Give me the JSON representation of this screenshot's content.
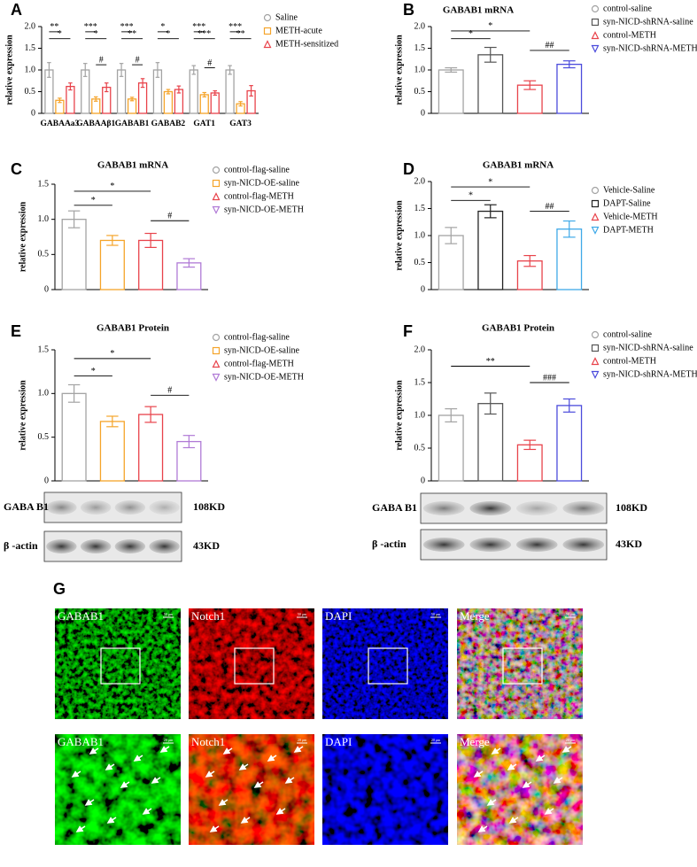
{
  "chart_data": [
    {
      "type": "bar",
      "panel_label": "A",
      "ylabel": "relative expression",
      "categories": [
        "GABAAa3",
        "GABAAβ1",
        "GABAB1",
        "GABAB2",
        "GAT1",
        "GAT3"
      ],
      "series": [
        {
          "name": "Saline",
          "color": "#a3a3a3",
          "marker": "circle",
          "values": [
            1.0,
            1.0,
            1.0,
            1.0,
            1.0,
            1.0
          ],
          "errors": [
            0.17,
            0.15,
            0.15,
            0.17,
            0.1,
            0.1
          ]
        },
        {
          "name": "METH-acute",
          "color": "#f5a42a",
          "marker": "square",
          "values": [
            0.3,
            0.33,
            0.33,
            0.5,
            0.43,
            0.22
          ],
          "errors": [
            0.05,
            0.05,
            0.04,
            0.05,
            0.05,
            0.05
          ]
        },
        {
          "name": "METH-sensitized",
          "color": "#e8434b",
          "marker": "triangle",
          "values": [
            0.62,
            0.6,
            0.7,
            0.55,
            0.47,
            0.52
          ],
          "errors": [
            0.08,
            0.1,
            0.1,
            0.08,
            0.05,
            0.12
          ]
        }
      ],
      "ylim": [
        0,
        2
      ],
      "yticks": [
        0,
        0.5,
        {
          "value": 1,
          "label": "1.0"
        },
        1.5,
        {
          "value": 2,
          "label": "2.0"
        }
      ],
      "annotations": [
        "**",
        "*",
        "***",
        "*",
        "#",
        "***",
        "**",
        "#",
        "*",
        "*",
        "***",
        "***",
        "#",
        "***",
        "**"
      ]
    },
    {
      "type": "bar",
      "panel_label": "B",
      "title": "GABAB1 mRNA",
      "ylabel": "relative expression",
      "series": [
        {
          "name": "control-saline",
          "color": "#a3a3a3",
          "marker": "circle",
          "values": [
            1.0
          ],
          "errors": [
            0.05
          ]
        },
        {
          "name": "syn-NICD-shRNA-saline",
          "color": "#555555",
          "marker": "square",
          "values": [
            1.35
          ],
          "errors": [
            0.17
          ]
        },
        {
          "name": "control-METH",
          "color": "#e8434b",
          "marker": "triangle",
          "values": [
            0.65
          ],
          "errors": [
            0.1
          ]
        },
        {
          "name": "syn-NICD-shRNA-METH",
          "color": "#4b4bdc",
          "marker": "triangle-down",
          "values": [
            1.13
          ],
          "errors": [
            0.08
          ]
        }
      ],
      "ylim": [
        0,
        2
      ],
      "yticks": [
        0,
        0.5,
        {
          "value": 1,
          "label": "1.0"
        },
        1.5,
        {
          "value": 2,
          "label": "2.0"
        }
      ],
      "annotations": [
        "*",
        "*",
        "##"
      ]
    },
    {
      "type": "bar",
      "panel_label": "C",
      "title": "GABAB1 mRNA",
      "ylabel": "relative expression",
      "series": [
        {
          "name": "control-flag-saline",
          "color": "#a3a3a3",
          "marker": "circle",
          "values": [
            1.0
          ],
          "errors": [
            0.12
          ]
        },
        {
          "name": "syn-NICD-OE-saline",
          "color": "#f5a42a",
          "marker": "square",
          "values": [
            0.7
          ],
          "errors": [
            0.07
          ]
        },
        {
          "name": "control-flag-METH",
          "color": "#e8434b",
          "marker": "triangle",
          "values": [
            0.7
          ],
          "errors": [
            0.1
          ]
        },
        {
          "name": "syn-NICD-OE-METH",
          "color": "#b07ad6",
          "marker": "triangle-down",
          "values": [
            0.38
          ],
          "errors": [
            0.06
          ]
        }
      ],
      "ylim": [
        0,
        1.5
      ],
      "yticks": [
        0,
        0.5,
        {
          "value": 1,
          "label": "1.0"
        },
        1.5
      ],
      "annotations": [
        "*",
        "*",
        "#"
      ]
    },
    {
      "type": "bar",
      "panel_label": "D",
      "title": "GABAB1 mRNA",
      "ylabel": "relative expression",
      "series": [
        {
          "name": "Vehicle-Saline",
          "color": "#a3a3a3",
          "marker": "circle",
          "values": [
            1.0
          ],
          "errors": [
            0.15
          ]
        },
        {
          "name": "DAPT-Saline",
          "color": "#222222",
          "marker": "square",
          "values": [
            1.45
          ],
          "errors": [
            0.12
          ]
        },
        {
          "name": "Vehicle-METH",
          "color": "#e8434b",
          "marker": "triangle",
          "values": [
            0.53
          ],
          "errors": [
            0.1
          ]
        },
        {
          "name": "DAPT-METH",
          "color": "#3fa9e8",
          "marker": "triangle-down",
          "values": [
            1.12
          ],
          "errors": [
            0.15
          ]
        }
      ],
      "ylim": [
        0,
        2
      ],
      "yticks": [
        0,
        0.5,
        {
          "value": 1,
          "label": "1.0"
        },
        1.5,
        {
          "value": 2,
          "label": "2.0"
        }
      ],
      "annotations": [
        "*",
        "*",
        "##"
      ]
    },
    {
      "type": "bar",
      "panel_label": "E",
      "title": "GABAB1 Protein",
      "ylabel": "relative expression",
      "series": [
        {
          "name": "control-flag-saline",
          "color": "#a3a3a3",
          "marker": "circle",
          "values": [
            1.0
          ],
          "errors": [
            0.1
          ]
        },
        {
          "name": "syn-NICD-OE-saline",
          "color": "#f5a42a",
          "marker": "square",
          "values": [
            0.68
          ],
          "errors": [
            0.06
          ]
        },
        {
          "name": "control-flag-METH",
          "color": "#e8434b",
          "marker": "triangle",
          "values": [
            0.76
          ],
          "errors": [
            0.09
          ]
        },
        {
          "name": "syn-NICD-OE-METH",
          "color": "#b07ad6",
          "marker": "triangle-down",
          "values": [
            0.45
          ],
          "errors": [
            0.07
          ]
        }
      ],
      "ylim": [
        0,
        1.5
      ],
      "yticks": [
        0,
        0.5,
        {
          "value": 1,
          "label": "1.0"
        },
        1.5
      ],
      "annotations": [
        "*",
        "*",
        "#"
      ]
    },
    {
      "type": "bar",
      "panel_label": "F",
      "title": "GABAB1 Protein",
      "ylabel": "relative expression",
      "series": [
        {
          "name": "control-saline",
          "color": "#a3a3a3",
          "marker": "circle",
          "values": [
            1.0
          ],
          "errors": [
            0.1
          ]
        },
        {
          "name": "syn-NICD-shRNA-saline",
          "color": "#555555",
          "marker": "square",
          "values": [
            1.18
          ],
          "errors": [
            0.16
          ]
        },
        {
          "name": "control-METH",
          "color": "#e8434b",
          "marker": "triangle",
          "values": [
            0.55
          ],
          "errors": [
            0.07
          ]
        },
        {
          "name": "syn-NICD-shRNA-METH",
          "color": "#4b4bdc",
          "marker": "triangle-down",
          "values": [
            1.15
          ],
          "errors": [
            0.1
          ]
        }
      ],
      "ylim": [
        0,
        2
      ],
      "yticks": [
        0,
        0.5,
        {
          "value": 1,
          "label": "1.0"
        },
        1.5,
        {
          "value": 2,
          "label": "2.0"
        }
      ],
      "annotations": [
        "**",
        "###"
      ]
    }
  ],
  "blots": [
    {
      "target": "GABA B1",
      "target_size": "108KD",
      "control": "β -actin",
      "control_size": "43KD"
    },
    {
      "target": "GABA B1",
      "target_size": "108KD",
      "control": "β -actin",
      "control_size": "43KD"
    }
  ],
  "panel_g": {
    "label": "G",
    "channels": [
      "GABAB1",
      "Notch1",
      "DAPI",
      "Merge"
    ],
    "scale_bars": [
      "50 μm",
      "20 μm"
    ]
  }
}
